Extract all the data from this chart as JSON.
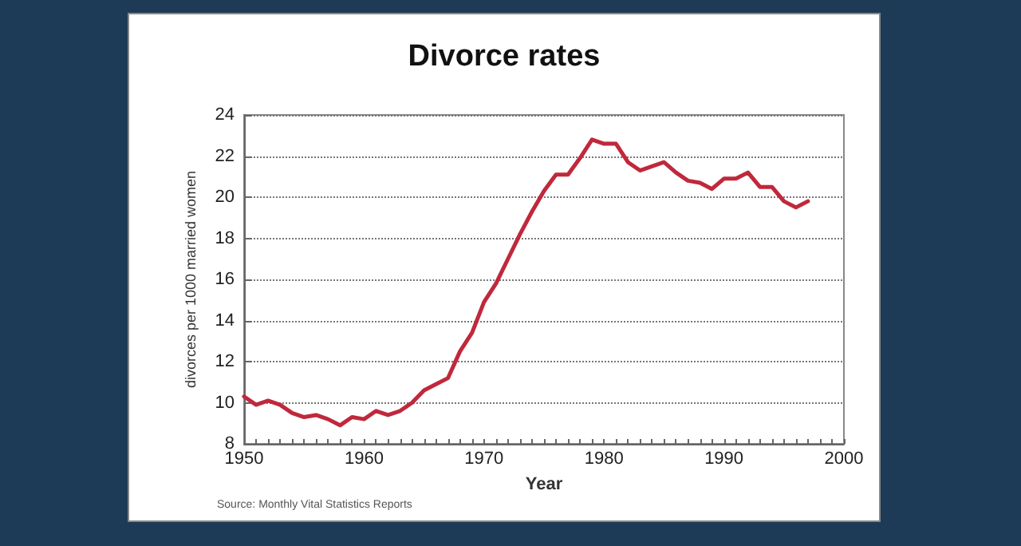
{
  "chart_data": {
    "type": "line",
    "title": "Divorce rates",
    "xlabel": "Year",
    "ylabel": "divorces per 1000 married women",
    "x": [
      1950,
      1951,
      1952,
      1953,
      1954,
      1955,
      1956,
      1957,
      1958,
      1959,
      1960,
      1961,
      1962,
      1963,
      1964,
      1965,
      1966,
      1967,
      1968,
      1969,
      1970,
      1971,
      1972,
      1973,
      1974,
      1975,
      1976,
      1977,
      1978,
      1979,
      1980,
      1981,
      1982,
      1983,
      1984,
      1985,
      1986,
      1987,
      1988,
      1989,
      1990,
      1991,
      1992,
      1993,
      1994,
      1995,
      1996,
      1997
    ],
    "series": [
      {
        "color": "#c0283c",
        "values": [
          10.3,
          9.9,
          10.1,
          9.9,
          9.5,
          9.3,
          9.4,
          9.2,
          8.9,
          9.3,
          9.2,
          9.6,
          9.4,
          9.6,
          10.0,
          10.6,
          10.9,
          11.2,
          12.5,
          13.4,
          14.9,
          15.8,
          17.0,
          18.2,
          19.3,
          20.3,
          21.1,
          21.1,
          21.9,
          22.8,
          22.6,
          22.6,
          21.7,
          21.3,
          21.5,
          21.7,
          21.2,
          20.8,
          20.7,
          20.4,
          20.9,
          20.9,
          21.2,
          20.5,
          20.5,
          19.8,
          19.5,
          19.8
        ]
      }
    ],
    "xlim": [
      1950,
      2000
    ],
    "xticks": [
      1950,
      1960,
      1970,
      1980,
      1990,
      2000
    ],
    "ylim": [
      8,
      24
    ],
    "yticks": [
      8,
      10,
      12,
      14,
      16,
      18,
      20,
      22,
      24
    ],
    "grid": "y",
    "marker": "none",
    "line_style": "solid",
    "annotations": [
      "Source: Monthly Vital Statistics Reports"
    ]
  }
}
